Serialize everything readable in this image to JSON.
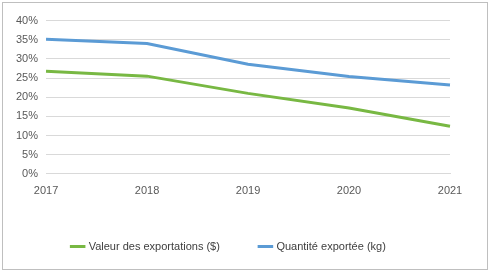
{
  "chart_data": {
    "type": "line",
    "categories": [
      "2017",
      "2018",
      "2019",
      "2020",
      "2021"
    ],
    "series": [
      {
        "name": "Valeur des exportations ($)",
        "color": "#78b843",
        "values": [
          26.8,
          25.5,
          21.0,
          17.2,
          12.4
        ]
      },
      {
        "name": "Quantité exportée (kg)",
        "color": "#5b9bd5",
        "values": [
          35.1,
          34.0,
          28.6,
          25.4,
          23.2
        ]
      }
    ],
    "ylim": [
      0,
      40
    ],
    "yticks": [
      {
        "value": 0,
        "label": "0%"
      },
      {
        "value": 5,
        "label": "5%"
      },
      {
        "value": 10,
        "label": "10%"
      },
      {
        "value": 15,
        "label": "15%"
      },
      {
        "value": 20,
        "label": "20%"
      },
      {
        "value": 25,
        "label": "25%"
      },
      {
        "value": 30,
        "label": "30%"
      },
      {
        "value": 35,
        "label": "35%"
      },
      {
        "value": 40,
        "label": "40%"
      }
    ],
    "grid": true,
    "legend": "bottom"
  }
}
